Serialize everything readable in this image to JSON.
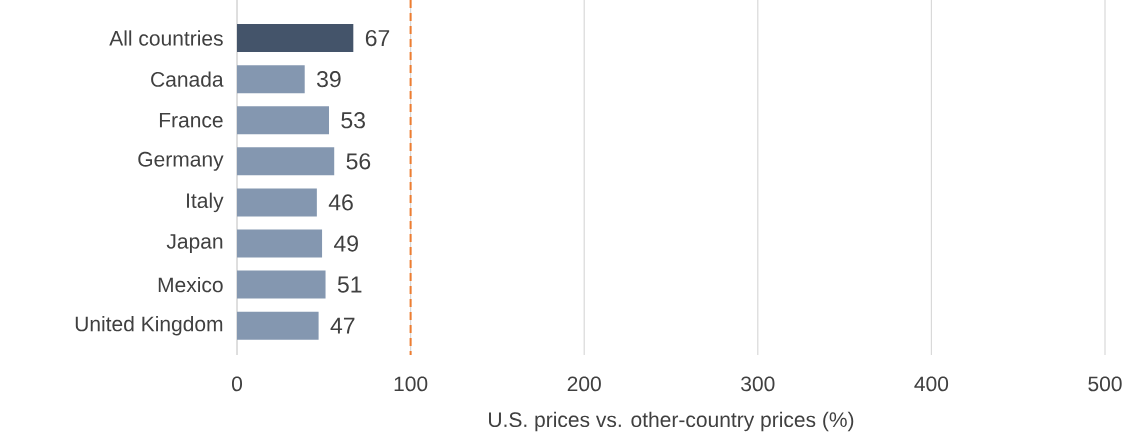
{
  "chart_data": {
    "type": "bar",
    "orientation": "horizontal",
    "xlabel": "U.S. prices vs. other-country prices (%)",
    "categories": [
      "All countries",
      "Canada",
      "France",
      "Germany",
      "Italy",
      "Japan",
      "Mexico",
      "United Kingdom"
    ],
    "values": [
      67,
      39,
      53,
      56,
      46,
      49,
      51,
      47
    ],
    "colors": [
      "#44546a",
      "#8497b0",
      "#8497b0",
      "#8497b0",
      "#8497b0",
      "#8497b0",
      "#8497b0",
      "#8497b0"
    ],
    "xlim": [
      0,
      500
    ],
    "xticks": [
      0,
      100,
      200,
      300,
      400,
      500
    ],
    "grid": "x",
    "data_labels": true,
    "ref_lines": [
      {
        "axis": "x",
        "value": 100,
        "color": "#ed7d31",
        "line_style": "dashed"
      }
    ]
  }
}
